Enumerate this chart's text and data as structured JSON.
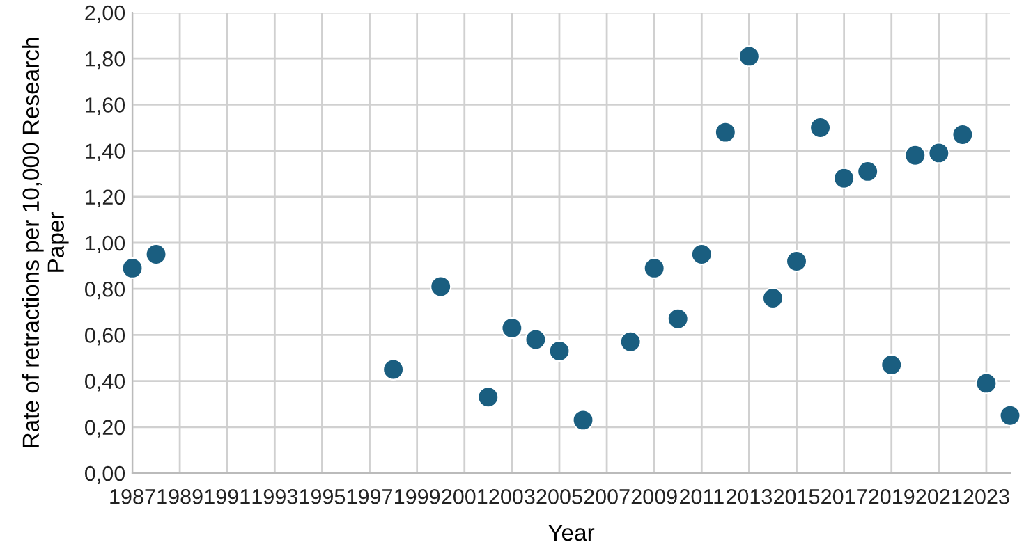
{
  "chart_data": {
    "type": "scatter",
    "xlabel": "Year",
    "ylabel": "Rate of retractions per 10,000 Research\nPaper",
    "x": [
      1987,
      1988,
      1998,
      2000,
      2002,
      2003,
      2004,
      2005,
      2006,
      2008,
      2009,
      2010,
      2011,
      2012,
      2013,
      2014,
      2015,
      2016,
      2017,
      2018,
      2019,
      2020,
      2021,
      2022,
      2023,
      2024
    ],
    "series": [
      {
        "color": "#1a5e80",
        "values": [
          0.89,
          0.95,
          0.45,
          0.81,
          0.33,
          0.63,
          0.58,
          0.53,
          0.23,
          0.57,
          0.89,
          0.67,
          0.95,
          1.48,
          1.81,
          0.76,
          0.92,
          1.5,
          1.28,
          1.31,
          0.47,
          1.38,
          1.39,
          1.47,
          0.39,
          0.25
        ]
      }
    ],
    "marker": "circle",
    "grid": true,
    "xlim": [
      1987,
      2024
    ],
    "xticks": [
      1987,
      1989,
      1991,
      1993,
      1995,
      1997,
      1999,
      2001,
      2003,
      2005,
      2007,
      2009,
      2011,
      2013,
      2015,
      2017,
      2019,
      2021,
      2023
    ],
    "ylim": [
      0,
      2
    ],
    "yticks": [
      {
        "value": 0,
        "label": "0,00"
      },
      {
        "value": 0.2,
        "label": "0,20"
      },
      {
        "value": 0.4,
        "label": "0,40"
      },
      {
        "value": 0.6,
        "label": "0,60"
      },
      {
        "value": 0.8,
        "label": "0,80"
      },
      {
        "value": 1,
        "label": "1,00"
      },
      {
        "value": 1.2,
        "label": "1,20"
      },
      {
        "value": 1.4,
        "label": "1,40"
      },
      {
        "value": 1.6,
        "label": "1,60"
      },
      {
        "value": 1.8,
        "label": "1,80"
      },
      {
        "value": 2,
        "label": "2,00"
      }
    ]
  }
}
